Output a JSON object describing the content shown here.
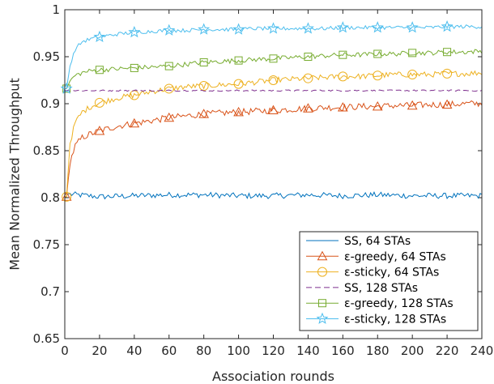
{
  "chart_data": {
    "type": "line",
    "xlabel": "Association rounds",
    "ylabel": "Mean Normalized Throughput",
    "xlim": [
      0,
      240
    ],
    "ylim": [
      0.65,
      1
    ],
    "xticks": [
      0,
      20,
      40,
      60,
      80,
      100,
      120,
      140,
      160,
      180,
      200,
      220,
      240
    ],
    "yticks": [
      0.65,
      0.7,
      0.75,
      0.8,
      0.85,
      0.9,
      0.95,
      1
    ],
    "xtick_labels": [
      "0",
      "20",
      "40",
      "60",
      "80",
      "100",
      "120",
      "140",
      "160",
      "180",
      "200",
      "220",
      "240"
    ],
    "ytick_labels": [
      "0.65",
      "0.7",
      "0.75",
      "0.8",
      "0.85",
      "0.9",
      "0.95",
      "1"
    ],
    "grid": false,
    "legend_position": "bottom-right",
    "marker_x": [
      1,
      20,
      40,
      60,
      80,
      100,
      120,
      140,
      160,
      180,
      200,
      220
    ],
    "series": [
      {
        "name": "SS, 64 STAs",
        "color": "#0072BD",
        "marker": "none",
        "dash": "solid",
        "x": [
          1,
          20,
          40,
          60,
          80,
          100,
          120,
          140,
          160,
          180,
          200,
          220,
          240
        ],
        "y": [
          0.804,
          0.801,
          0.802,
          0.803,
          0.803,
          0.802,
          0.802,
          0.803,
          0.802,
          0.803,
          0.802,
          0.802,
          0.802
        ]
      },
      {
        "name": "ε-greedy, 64 STAs",
        "color": "#D95319",
        "marker": "triangle",
        "dash": "solid",
        "x": [
          1,
          3,
          6,
          10,
          15,
          20,
          30,
          40,
          50,
          60,
          70,
          80,
          90,
          100,
          110,
          120,
          130,
          140,
          150,
          160,
          170,
          180,
          190,
          200,
          210,
          220,
          230,
          240
        ],
        "y": [
          0.801,
          0.838,
          0.855,
          0.864,
          0.868,
          0.871,
          0.876,
          0.879,
          0.882,
          0.885,
          0.887,
          0.889,
          0.89,
          0.891,
          0.892,
          0.893,
          0.894,
          0.895,
          0.896,
          0.896,
          0.897,
          0.897,
          0.898,
          0.898,
          0.899,
          0.899,
          0.9,
          0.9
        ]
      },
      {
        "name": "ε-sticky, 64 STAs",
        "color": "#EDB120",
        "marker": "circle",
        "dash": "solid",
        "x": [
          1,
          3,
          6,
          10,
          15,
          20,
          30,
          40,
          50,
          60,
          70,
          80,
          90,
          100,
          110,
          120,
          130,
          140,
          150,
          160,
          170,
          180,
          190,
          200,
          210,
          220,
          230,
          240
        ],
        "y": [
          0.801,
          0.858,
          0.88,
          0.891,
          0.897,
          0.901,
          0.906,
          0.909,
          0.913,
          0.916,
          0.918,
          0.919,
          0.92,
          0.921,
          0.923,
          0.925,
          0.926,
          0.927,
          0.928,
          0.929,
          0.929,
          0.93,
          0.931,
          0.931,
          0.931,
          0.932,
          0.932,
          0.933
        ]
      },
      {
        "name": "SS, 128 STAs",
        "color": "#7E2F8E",
        "marker": "none",
        "dash": "dashed",
        "x": [
          1,
          20,
          40,
          60,
          80,
          100,
          120,
          140,
          160,
          180,
          200,
          220,
          240
        ],
        "y": [
          0.914,
          0.914,
          0.914,
          0.914,
          0.914,
          0.914,
          0.914,
          0.914,
          0.914,
          0.914,
          0.914,
          0.914,
          0.914
        ]
      },
      {
        "name": "ε-greedy, 128 STAs",
        "color": "#77AC30",
        "marker": "square",
        "dash": "solid",
        "x": [
          1,
          3,
          6,
          10,
          15,
          20,
          30,
          40,
          50,
          60,
          70,
          80,
          90,
          100,
          110,
          120,
          130,
          140,
          150,
          160,
          170,
          180,
          190,
          200,
          210,
          220,
          230,
          240
        ],
        "y": [
          0.916,
          0.924,
          0.93,
          0.933,
          0.935,
          0.936,
          0.937,
          0.938,
          0.939,
          0.94,
          0.942,
          0.944,
          0.945,
          0.946,
          0.947,
          0.948,
          0.949,
          0.95,
          0.951,
          0.952,
          0.952,
          0.953,
          0.953,
          0.954,
          0.954,
          0.955,
          0.955,
          0.956
        ]
      },
      {
        "name": "ε-sticky, 128 STAs",
        "color": "#4DBEEE",
        "marker": "star",
        "dash": "solid",
        "x": [
          1,
          3,
          6,
          10,
          15,
          20,
          30,
          40,
          50,
          60,
          70,
          80,
          90,
          100,
          110,
          120,
          130,
          140,
          150,
          160,
          170,
          180,
          190,
          200,
          210,
          220,
          230,
          240
        ],
        "y": [
          0.916,
          0.94,
          0.958,
          0.966,
          0.969,
          0.971,
          0.974,
          0.976,
          0.977,
          0.978,
          0.978,
          0.979,
          0.979,
          0.979,
          0.98,
          0.98,
          0.98,
          0.98,
          0.98,
          0.981,
          0.981,
          0.981,
          0.981,
          0.981,
          0.981,
          0.982,
          0.982,
          0.982
        ]
      }
    ]
  }
}
